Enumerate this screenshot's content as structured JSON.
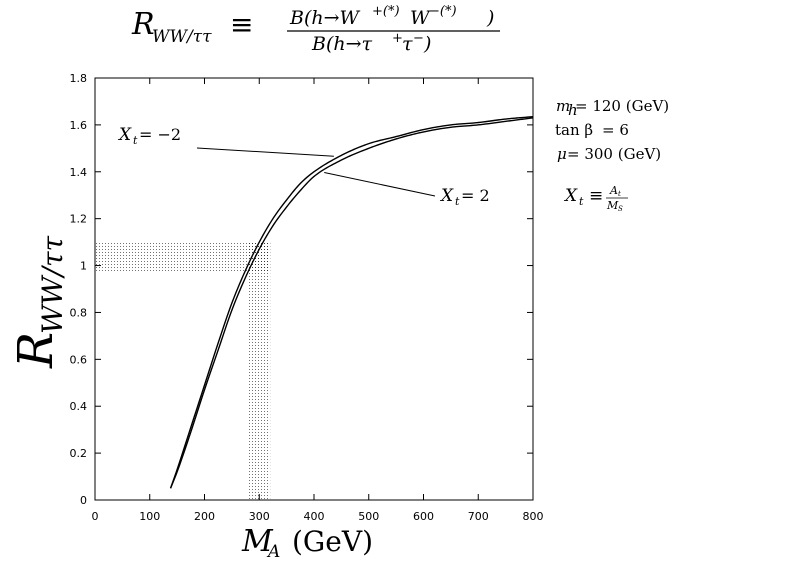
{
  "chart_data": {
    "type": "line",
    "title": {
      "lhs": "R",
      "lhs_sub": "WW/ττ",
      "equiv": "≡",
      "numerator": "B(h→W",
      "numerator_sup1": "+(*)",
      "numerator_mid": "W",
      "numerator_sup2": "−(*)",
      "numerator_end": ")",
      "denominator": "B(h→τ",
      "denominator_sup1": "+",
      "denominator_mid": "τ",
      "denominator_sup2": "−",
      "denominator_end": ")"
    },
    "ylabel": {
      "main": "R",
      "sub": "WW/ττ"
    },
    "xlabel": {
      "main": "M",
      "sub": "A",
      "unit": "(GeV)"
    },
    "xlim": [
      0,
      800
    ],
    "ylim": [
      0,
      1.8
    ],
    "x_ticks": [
      "0",
      "100",
      "200",
      "300",
      "400",
      "500",
      "600",
      "700",
      "800"
    ],
    "y_ticks": [
      "0",
      "0.2",
      "0.4",
      "0.6",
      "0.8",
      "1",
      "1.2",
      "1.4",
      "1.6",
      "1.8"
    ],
    "grid": false,
    "series": [
      {
        "name": "X_t = -2",
        "x": [
          138,
          150,
          175,
          200,
          225,
          250,
          275,
          300,
          325,
          350,
          375,
          400,
          450,
          500,
          550,
          600,
          650,
          700,
          750,
          800
        ],
        "y": [
          0.05,
          0.13,
          0.31,
          0.49,
          0.67,
          0.84,
          0.98,
          1.1,
          1.2,
          1.28,
          1.35,
          1.4,
          1.47,
          1.52,
          1.55,
          1.58,
          1.6,
          1.61,
          1.625,
          1.635
        ]
      },
      {
        "name": "X_t = 2",
        "x": [
          138,
          150,
          175,
          200,
          225,
          250,
          275,
          300,
          325,
          350,
          375,
          400,
          450,
          500,
          550,
          600,
          650,
          700,
          750,
          800
        ],
        "y": [
          0.05,
          0.12,
          0.29,
          0.47,
          0.64,
          0.81,
          0.95,
          1.07,
          1.17,
          1.25,
          1.32,
          1.38,
          1.45,
          1.5,
          1.54,
          1.57,
          1.59,
          1.6,
          1.615,
          1.63
        ]
      }
    ],
    "shaded_bands": [
      {
        "axis": "y",
        "from": 0.97,
        "to": 1.1,
        "x_from": 0,
        "x_to": 320
      },
      {
        "axis": "x",
        "from": 280,
        "to": 320,
        "y_from": 0,
        "y_to": 1.1
      }
    ],
    "annotations": [
      {
        "id": "xt-minus",
        "label_main": "X",
        "label_sub": "t",
        "label_rest": " = −2",
        "points_to_series": 0,
        "target_x": 440
      },
      {
        "id": "xt-plus",
        "label_main": "X",
        "label_sub": "t",
        "label_rest": " = 2",
        "points_to_series": 1,
        "target_x": 415
      }
    ],
    "parameters": [
      {
        "main": "m",
        "sub": "h",
        "rest": " = 120 (GeV)"
      },
      {
        "main": "tan β",
        "sub": "",
        "rest": " = 6"
      },
      {
        "main": "μ",
        "sub": "",
        "rest": " = 300 (GeV)"
      }
    ],
    "definition": {
      "lhs": "X",
      "lhs_sub": "t",
      "equiv": "≡",
      "num": "A",
      "num_sub": "t",
      "den": "M",
      "den_sub": "S"
    }
  }
}
